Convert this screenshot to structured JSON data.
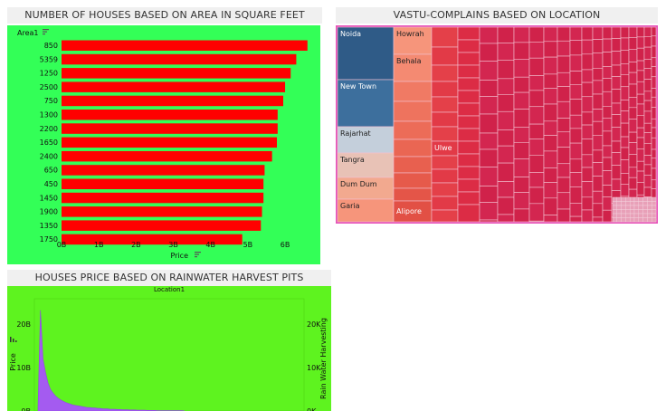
{
  "panels": {
    "bar_title": "NUMBER OF HOUSES BASED ON AREA IN SQUARE FEET",
    "treemap_title": "VASTU-COMPLAINS BASED ON LOCATION",
    "area_title": "HOUSES PRICE BASED ON RAINWATER HARVEST PITS"
  },
  "colors": {
    "bar_bg": "#33ff57",
    "bar_fill": "#ff0000",
    "tree_bg": "#e652b8",
    "area_bg": "#5ef31f",
    "area_fill": "#a45bf0"
  },
  "icons": {
    "sort": "sort-icon",
    "legend": "legend-icon"
  },
  "chart_data": [
    {
      "type": "bar",
      "orientation": "horizontal",
      "title": "NUMBER OF HOUSES BASED ON AREA IN SQUARE FEET",
      "category_header": "Area1",
      "xlabel": "Price",
      "categories": [
        "850",
        "5359",
        "1250",
        "2500",
        "750",
        "1300",
        "2200",
        "1650",
        "2400",
        "650",
        "450",
        "1450",
        "1900",
        "1350",
        "1750"
      ],
      "values": [
        6.6,
        6.3,
        6.15,
        6.0,
        5.95,
        5.8,
        5.8,
        5.78,
        5.65,
        5.45,
        5.42,
        5.42,
        5.38,
        5.35,
        4.85
      ],
      "xlim": [
        0,
        6.8
      ],
      "xticks": [
        "0B",
        "1B",
        "2B",
        "3B",
        "4B",
        "5B",
        "6B"
      ],
      "grid": false
    },
    {
      "type": "treemap",
      "title": "VASTU-COMPLAINS BASED ON LOCATION",
      "labels": [
        "Noida",
        "New Town",
        "Rajarhat",
        "Tangra",
        "Dum Dum",
        "Garia",
        "Howrah",
        "Behala",
        "Alipore",
        "Ulwe"
      ]
    },
    {
      "type": "area",
      "title": "HOUSES PRICE BASED ON RAINWATER HARVEST PITS",
      "column_header": "Location1",
      "ylabel": "Price",
      "y2label": "Rain Water Harvesting",
      "yticks": [
        "20B",
        "10B",
        "0B"
      ],
      "y2ticks": [
        "20K",
        "10K",
        "0K"
      ],
      "ylim": [
        0,
        25
      ],
      "values": [
        1.0,
        23.2,
        12.0,
        9.0,
        6.5,
        5.0,
        4.2,
        3.5,
        3.0,
        2.6,
        2.3,
        2.0,
        1.8,
        1.6,
        1.4,
        1.3,
        1.2,
        1.1,
        1.0,
        0.9,
        0.8,
        0.8,
        0.7,
        0.7,
        0.6,
        0.6,
        0.5,
        0.5,
        0.5,
        0.4,
        0.4,
        0.4,
        0.35,
        0.35,
        0.3,
        0.3,
        0.3,
        0.25,
        0.25,
        0.25,
        0.2,
        0.2,
        0.2,
        0.2,
        0.15,
        0.15,
        0.15,
        0.15,
        0.1,
        0.1,
        0.1,
        0.1,
        0.1,
        0.1,
        0.08,
        0.08,
        0.08,
        0.08,
        0.08,
        0.05
      ]
    }
  ]
}
